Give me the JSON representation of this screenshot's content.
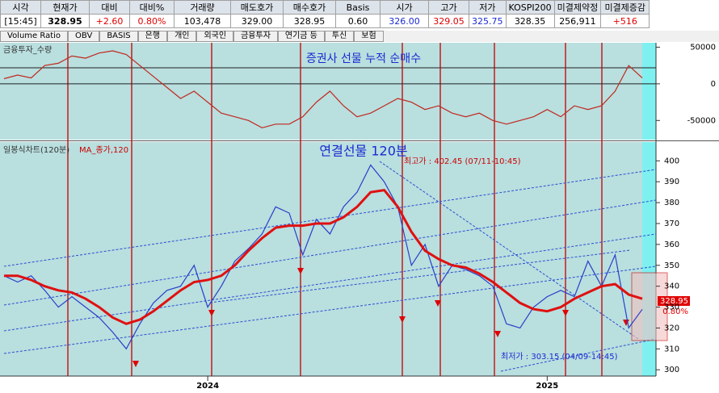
{
  "quote_table": {
    "headers": [
      "시각",
      "현재가",
      "대비",
      "대비%",
      "거래량",
      "매도호가",
      "매수호가",
      "Basis",
      "시가",
      "고가",
      "저가",
      "KOSPI200",
      "미결제약정",
      "미결제증감"
    ],
    "values": [
      "[15:45]",
      "328.95",
      "+2.60",
      "0.80%",
      "103,478",
      "329.00",
      "328.95",
      "0.60",
      "326.00",
      "329.05",
      "325.75",
      "328.35",
      "256,911",
      "+516"
    ]
  },
  "tabs": [
    "Volume Ratio",
    "OBV",
    "BASIS",
    "은행",
    "개인",
    "외국인",
    "금융투자",
    "연기금 등",
    "투신",
    "보험"
  ],
  "flow_panel": {
    "label": "금융투자_수량",
    "title": "증권사 선물 누적 순매수",
    "ylim": [
      -75000,
      56000
    ],
    "yticks": [
      50000,
      0,
      -50000
    ],
    "values": [
      7000,
      12000,
      8000,
      25000,
      28000,
      38000,
      35000,
      42000,
      45000,
      40000,
      25000,
      10000,
      -5000,
      -20000,
      -10000,
      -25000,
      -40000,
      -45000,
      -50000,
      -60000,
      -55000,
      -55000,
      -45000,
      -25000,
      -10000,
      -30000,
      -45000,
      -40000,
      -30000,
      -20000,
      -25000,
      -35000,
      -30000,
      -40000,
      -45000,
      -40000,
      -50000,
      -55000,
      -50000,
      -45000,
      -35000,
      -45000,
      -30000,
      -35000,
      -30000,
      -10000,
      25000,
      8000
    ]
  },
  "price_panel": {
    "label": "일봉식차트(120분)",
    "ma_label": "MA_종가,120",
    "title": "연결선물 120분",
    "ylim": [
      297,
      409
    ],
    "yticks": [
      300,
      310,
      320,
      330,
      340,
      350,
      360,
      370,
      380,
      390,
      400
    ],
    "categories": [
      null,
      null,
      null,
      null,
      null,
      null,
      null,
      null,
      null,
      null,
      null,
      null,
      null,
      null,
      null,
      "2024",
      null,
      null,
      null,
      null,
      null,
      null,
      null,
      null,
      null,
      null,
      null,
      null,
      null,
      null,
      null,
      null,
      null,
      null,
      null,
      null,
      null,
      null,
      null,
      null,
      "2025",
      null,
      null,
      null,
      null,
      null,
      null,
      null
    ],
    "close": [
      345,
      342,
      345,
      338,
      330,
      335,
      330,
      325,
      318,
      310,
      322,
      332,
      338,
      340,
      350,
      330,
      340,
      352,
      358,
      365,
      378,
      375,
      355,
      372,
      365,
      378,
      385,
      398,
      390,
      378,
      350,
      360,
      340,
      350,
      348,
      345,
      340,
      322,
      320,
      330,
      335,
      338,
      335,
      352,
      340,
      355,
      320,
      328.95
    ],
    "ma": [
      345,
      345,
      343,
      340,
      338,
      337,
      334,
      330,
      325,
      322,
      324,
      328,
      333,
      338,
      342,
      343,
      345,
      350,
      357,
      363,
      368,
      369,
      369,
      370,
      370,
      373,
      378,
      385,
      386,
      378,
      366,
      357,
      353,
      350,
      349,
      346,
      342,
      337,
      332,
      329,
      328,
      330,
      334,
      337,
      340,
      341,
      336,
      334
    ],
    "high_note": "최고가 : 402.45 (07/11-10:45)",
    "low_note": "최저가 : 303.15 (04/09-14:45)",
    "last_price": "328.95",
    "last_change": "0.80%"
  }
}
